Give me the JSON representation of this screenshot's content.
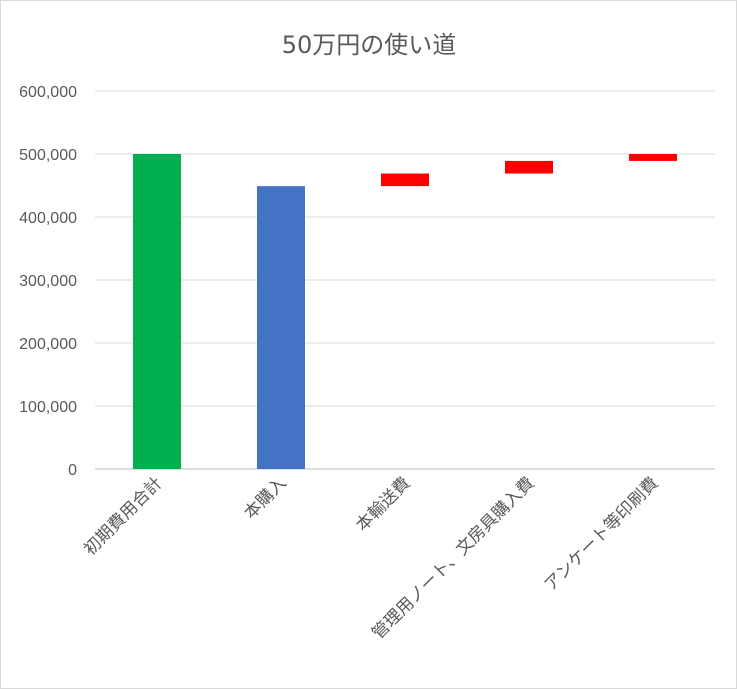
{
  "chart_data": {
    "type": "bar",
    "subtype": "waterfall",
    "title": "50万円の使い道",
    "xlabel": "",
    "ylabel": "",
    "ylim": [
      0,
      600000
    ],
    "yticks": [
      0,
      100000,
      200000,
      300000,
      400000,
      500000,
      600000
    ],
    "ytick_labels": [
      "0",
      "100,000",
      "200,000",
      "300,000",
      "400,000",
      "500,000",
      "600,000"
    ],
    "grid": true,
    "legend": "none",
    "categories": [
      "初期費用合計",
      "本購入",
      "本輸送費",
      "管理用ノート、文房具購入費",
      "アンケート等印刷費"
    ],
    "bars": [
      {
        "base": 0,
        "top": 500000,
        "color": "#00b050"
      },
      {
        "base": 0,
        "top": 449000,
        "color": "#4472c4"
      },
      {
        "base": 449000,
        "top": 469000,
        "color": "#ff0000"
      },
      {
        "base": 469000,
        "top": 489000,
        "color": "#ff0000"
      },
      {
        "base": 489000,
        "top": 500000,
        "color": "#ff0000"
      }
    ]
  }
}
